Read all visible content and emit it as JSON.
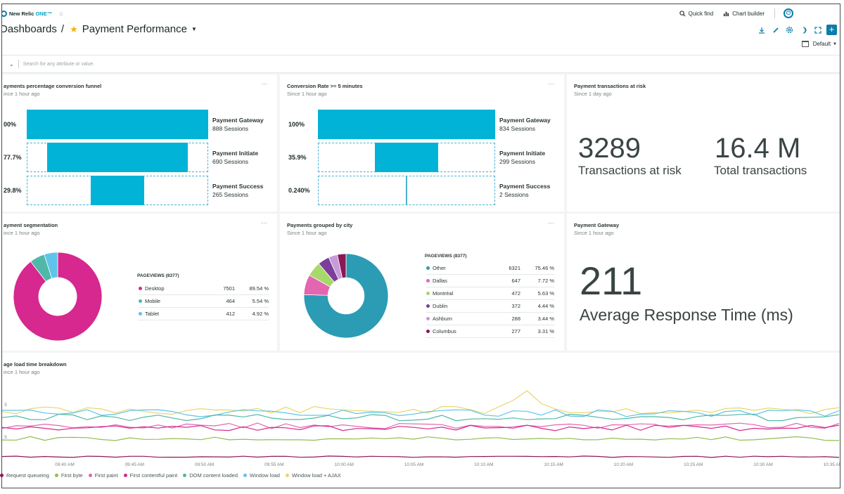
{
  "topnav": {
    "brand": "New Relic",
    "brand_suffix": "ONE™",
    "quick_find": "Quick find",
    "chart_builder": "Chart builder"
  },
  "header": {
    "breadcrumb_root": "Dashboards",
    "separator": "/",
    "dashboard_name": "Payment Performance",
    "time_range": "Default"
  },
  "filter": {
    "placeholder": "Search for any attribute or value."
  },
  "colors": {
    "accent": "#00b3d7",
    "brand": "#0e7ca8"
  },
  "widgets": {
    "funnel1": {
      "title": "ayments percentage conversion funnel",
      "subtitle": "ince 1 hour ago",
      "steps": [
        {
          "pct": "00%",
          "name": "Payment Gateway",
          "sessions": "888 Sessions",
          "fraction": 1.0
        },
        {
          "pct": "77.7%",
          "name": "Payment Initiate",
          "sessions": "690 Sessions",
          "fraction": 0.777
        },
        {
          "pct": "29.8%",
          "name": "Payment Success",
          "sessions": "265 Sessions",
          "fraction": 0.298
        }
      ]
    },
    "funnel2": {
      "title": "Conversion Rate >= 5 minutes",
      "subtitle": "Since 1 hour ago",
      "steps": [
        {
          "pct": "100%",
          "name": "Payment Gateway",
          "sessions": "834 Sessions",
          "fraction": 1.0
        },
        {
          "pct": "35.9%",
          "name": "Payment Initiate",
          "sessions": "299 Sessions",
          "fraction": 0.359
        },
        {
          "pct": "0.240%",
          "name": "Payment Success",
          "sessions": "2 Sessions",
          "fraction": 0.0024
        }
      ]
    },
    "risk": {
      "title": "Payment transactions at risk",
      "subtitle": "Since 1 day ago",
      "value1": "3289",
      "label1": "Transactions at risk",
      "value2": "16.4 M",
      "label2": "Total transactions"
    },
    "segmentation": {
      "title": "ayment segmentation",
      "subtitle": "ince 1 hour ago",
      "legend_title": "PAGEVIEWS (8377)",
      "items": [
        {
          "name": "Desktop",
          "value": "7501",
          "pct": "89.54 %",
          "color": "#d6288e",
          "share": 89.54
        },
        {
          "name": "Mobile",
          "value": "464",
          "pct": "5.54 %",
          "color": "#4fb8a8",
          "share": 5.54
        },
        {
          "name": "Tablet",
          "value": "412",
          "pct": "4.92 %",
          "color": "#5fc4e8",
          "share": 4.92
        }
      ]
    },
    "city": {
      "title": "Payments grouped by city",
      "subtitle": "Since 1 hour ago",
      "legend_title": "PAGEVIEWS (8377)",
      "items": [
        {
          "name": "Other",
          "value": "6321",
          "pct": "75.46 %",
          "color": "#2b9cb4",
          "share": 75.46
        },
        {
          "name": "Dallas",
          "value": "647",
          "pct": "7.72 %",
          "color": "#e465b0",
          "share": 7.72
        },
        {
          "name": "Montréal",
          "value": "472",
          "pct": "5.63 %",
          "color": "#a6d96a",
          "share": 5.63
        },
        {
          "name": "Dublin",
          "value": "372",
          "pct": "4.44 %",
          "color": "#7b3f9a",
          "share": 4.44
        },
        {
          "name": "Ashburn",
          "value": "288",
          "pct": "3.44 %",
          "color": "#c79bd8",
          "share": 3.44
        },
        {
          "name": "Columbus",
          "value": "277",
          "pct": "3.31 %",
          "color": "#8e1656",
          "share": 3.31
        }
      ]
    },
    "gateway": {
      "title": "Payment Gateway",
      "subtitle": "Since 1 hour ago",
      "value": "211",
      "label": "Average Response Time (ms)"
    },
    "breakdown": {
      "title": "age load time breakdown",
      "subtitle": "ince 1 hour ago",
      "y_ticks": [
        "5",
        "5"
      ],
      "x_ticks": [
        "09:40 AM",
        "09:45 AM",
        "09:50 AM",
        "09:55 AM",
        "10:00 AM",
        "10:05 AM",
        "10:10 AM",
        "10:15 AM",
        "10:20 AM",
        "10:25 AM",
        "10:30 AM",
        "10:35 AM"
      ],
      "legend": [
        {
          "name": "Request queueing",
          "color": "#8e1656"
        },
        {
          "name": "First byte",
          "color": "#8cc152"
        },
        {
          "name": "First paint",
          "color": "#e465b0"
        },
        {
          "name": "First contentful paint",
          "color": "#d6288e"
        },
        {
          "name": "DOM content loaded",
          "color": "#4fb8a8"
        },
        {
          "name": "Window load",
          "color": "#5fc4e8"
        },
        {
          "name": "Window load + AJAX",
          "color": "#e8d66a"
        }
      ]
    }
  }
}
